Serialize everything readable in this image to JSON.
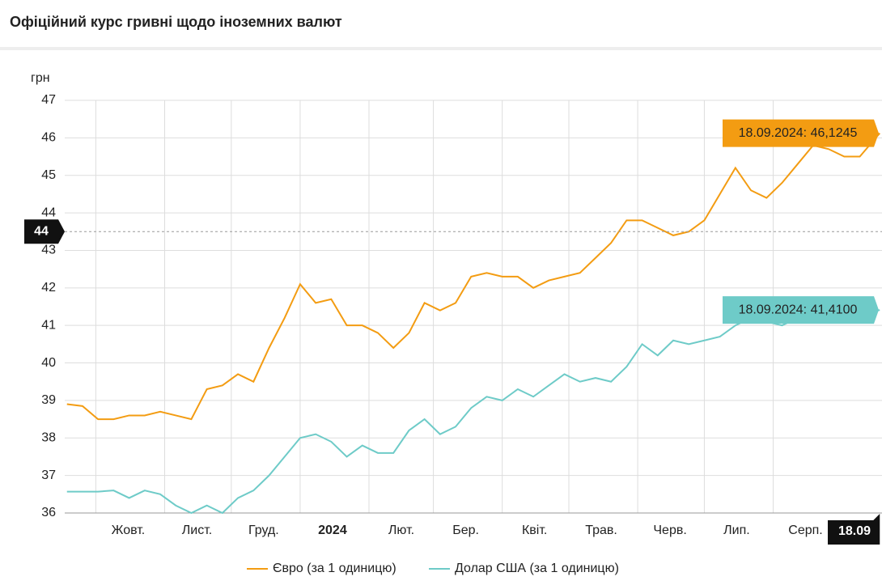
{
  "header": {
    "title": "Офіційний курс гривні щодо іноземних валют"
  },
  "chart_data": {
    "type": "line",
    "y_label": "грн",
    "x": [
      "2023-09-18",
      "2023-09-25",
      "2023-10-02",
      "2023-10-09",
      "2023-10-16",
      "2023-10-23",
      "2023-10-30",
      "2023-11-06",
      "2023-11-13",
      "2023-11-20",
      "2023-11-27",
      "2023-12-04",
      "2023-12-11",
      "2023-12-18",
      "2023-12-25",
      "2024-01-01",
      "2024-01-08",
      "2024-01-15",
      "2024-01-22",
      "2024-01-29",
      "2024-02-05",
      "2024-02-12",
      "2024-02-19",
      "2024-02-26",
      "2024-03-04",
      "2024-03-11",
      "2024-03-18",
      "2024-03-25",
      "2024-04-01",
      "2024-04-08",
      "2024-04-15",
      "2024-04-22",
      "2024-04-29",
      "2024-05-06",
      "2024-05-13",
      "2024-05-20",
      "2024-05-27",
      "2024-06-03",
      "2024-06-10",
      "2024-06-17",
      "2024-06-24",
      "2024-07-01",
      "2024-07-08",
      "2024-07-15",
      "2024-07-22",
      "2024-07-29",
      "2024-08-05",
      "2024-08-12",
      "2024-08-19",
      "2024-08-26",
      "2024-09-02",
      "2024-09-09",
      "2024-09-18"
    ],
    "series": [
      {
        "name": "Євро (за 1 одиницю)",
        "color": "#f39c12",
        "values": [
          38.9,
          38.85,
          38.5,
          38.5,
          38.6,
          38.6,
          38.7,
          38.6,
          38.5,
          39.3,
          39.4,
          39.7,
          39.5,
          40.4,
          41.2,
          42.1,
          41.6,
          41.7,
          41.0,
          41.0,
          40.8,
          40.4,
          40.8,
          41.6,
          41.4,
          41.6,
          42.3,
          42.4,
          42.3,
          42.3,
          42.0,
          42.2,
          42.3,
          42.4,
          42.8,
          43.2,
          43.8,
          43.8,
          43.6,
          43.4,
          43.5,
          43.8,
          44.5,
          45.2,
          44.6,
          44.4,
          44.8,
          45.3,
          45.8,
          45.7,
          45.5,
          45.5,
          46.1245
        ]
      },
      {
        "name": "Долар США (за 1 одиницю)",
        "color": "#6ecbc8",
        "values": [
          36.57,
          36.57,
          36.57,
          36.6,
          36.4,
          36.6,
          36.5,
          36.2,
          36.0,
          36.2,
          36.0,
          36.4,
          36.6,
          37.0,
          37.5,
          38.0,
          38.1,
          37.9,
          37.5,
          37.8,
          37.6,
          37.6,
          38.2,
          38.5,
          38.1,
          38.3,
          38.8,
          39.1,
          39.0,
          39.3,
          39.1,
          39.4,
          39.7,
          39.5,
          39.6,
          39.5,
          39.9,
          40.5,
          40.2,
          40.6,
          40.5,
          40.6,
          40.7,
          41.0,
          41.2,
          41.1,
          41.0,
          41.2,
          41.1,
          41.2,
          41.3,
          41.3,
          41.41
        ]
      }
    ],
    "xlim": [
      "2023-09-17",
      "2024-09-19"
    ],
    "xticks": [
      {
        "value": "2023-10-01",
        "label": "Жовт."
      },
      {
        "value": "2023-11-01",
        "label": "Лист."
      },
      {
        "value": "2023-12-01",
        "label": "Груд."
      },
      {
        "value": "2024-01-01",
        "label": "2024"
      },
      {
        "value": "2024-02-01",
        "label": "Лют."
      },
      {
        "value": "2024-03-01",
        "label": "Бер."
      },
      {
        "value": "2024-04-01",
        "label": "Квіт."
      },
      {
        "value": "2024-05-01",
        "label": "Трав."
      },
      {
        "value": "2024-06-01",
        "label": "Черв."
      },
      {
        "value": "2024-07-01",
        "label": "Лип."
      },
      {
        "value": "2024-08-01",
        "label": "Серп."
      }
    ],
    "ylim": [
      36,
      47
    ],
    "yticks": [
      36,
      37,
      38,
      39,
      40,
      41,
      42,
      43,
      44,
      45,
      46,
      47
    ],
    "grid": true,
    "tooltips": [
      "18.09.2024: 46,1245",
      "18.09.2024: 41,4100"
    ],
    "crosshair_y": {
      "value": 43.5,
      "label": "44"
    },
    "crosshair_x": {
      "value": "2024-09-18",
      "label": "18.09"
    }
  }
}
